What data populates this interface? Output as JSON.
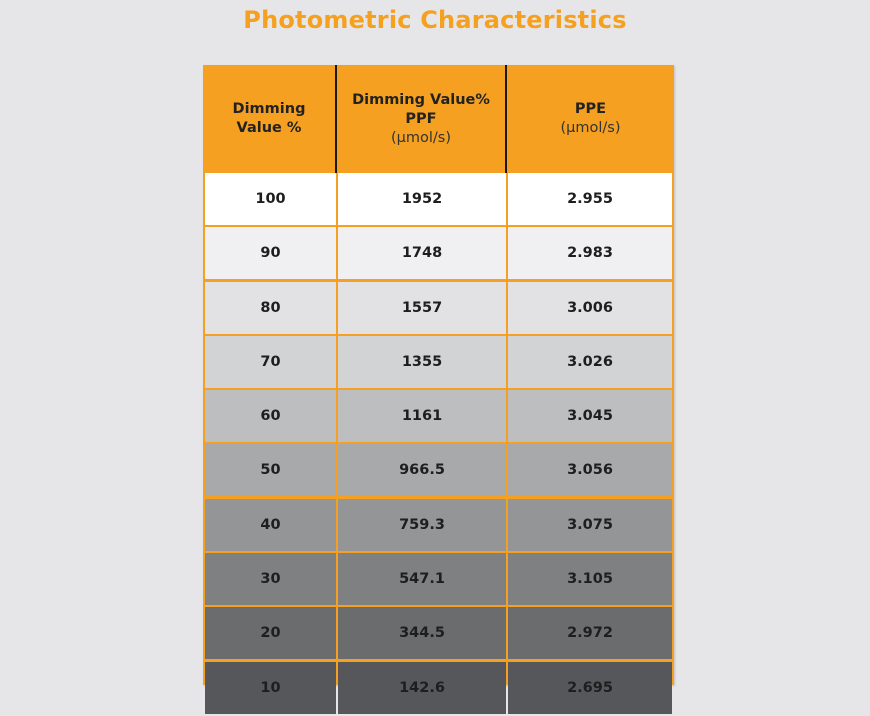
{
  "title": "Photometric Characteristics",
  "colors": {
    "accent": "#f5a020",
    "title": "#f5a01e",
    "background": "#e6e6e8",
    "header_divider": "#1a1a1a"
  },
  "table": {
    "headers": [
      {
        "line1": "Dimming",
        "line2": "Value %",
        "line3": ""
      },
      {
        "line1": "Dimming Value%",
        "line2": "PPF",
        "line3": "(µmol/s)"
      },
      {
        "line1": "PPE",
        "line2": "(µmol/s)",
        "line3": ""
      }
    ],
    "rows": [
      {
        "dimming": "100",
        "ppf": "1952",
        "ppe": "2.955",
        "bg": "#ffffff"
      },
      {
        "dimming": "90",
        "ppf": "1748",
        "ppe": "2.983",
        "bg": "#f0f0f2"
      },
      {
        "dimming": "80",
        "ppf": "1557",
        "ppe": "3.006",
        "bg": "#e2e2e4"
      },
      {
        "dimming": "70",
        "ppf": "1355",
        "ppe": "3.026",
        "bg": "#d2d3d5"
      },
      {
        "dimming": "60",
        "ppf": "1161",
        "ppe": "3.045",
        "bg": "#bdbec0"
      },
      {
        "dimming": "50",
        "ppf": "966.5",
        "ppe": "3.056",
        "bg": "#a8a9ab"
      },
      {
        "dimming": "40",
        "ppf": "759.3",
        "ppe": "3.075",
        "bg": "#939597"
      },
      {
        "dimming": "30",
        "ppf": "547.1",
        "ppe": "3.105",
        "bg": "#7e8082"
      },
      {
        "dimming": "20",
        "ppf": "344.5",
        "ppe": "2.972",
        "bg": "#6a6c6e"
      },
      {
        "dimming": "10",
        "ppf": "142.6",
        "ppe": "2.695",
        "bg": "#55575a"
      }
    ]
  }
}
